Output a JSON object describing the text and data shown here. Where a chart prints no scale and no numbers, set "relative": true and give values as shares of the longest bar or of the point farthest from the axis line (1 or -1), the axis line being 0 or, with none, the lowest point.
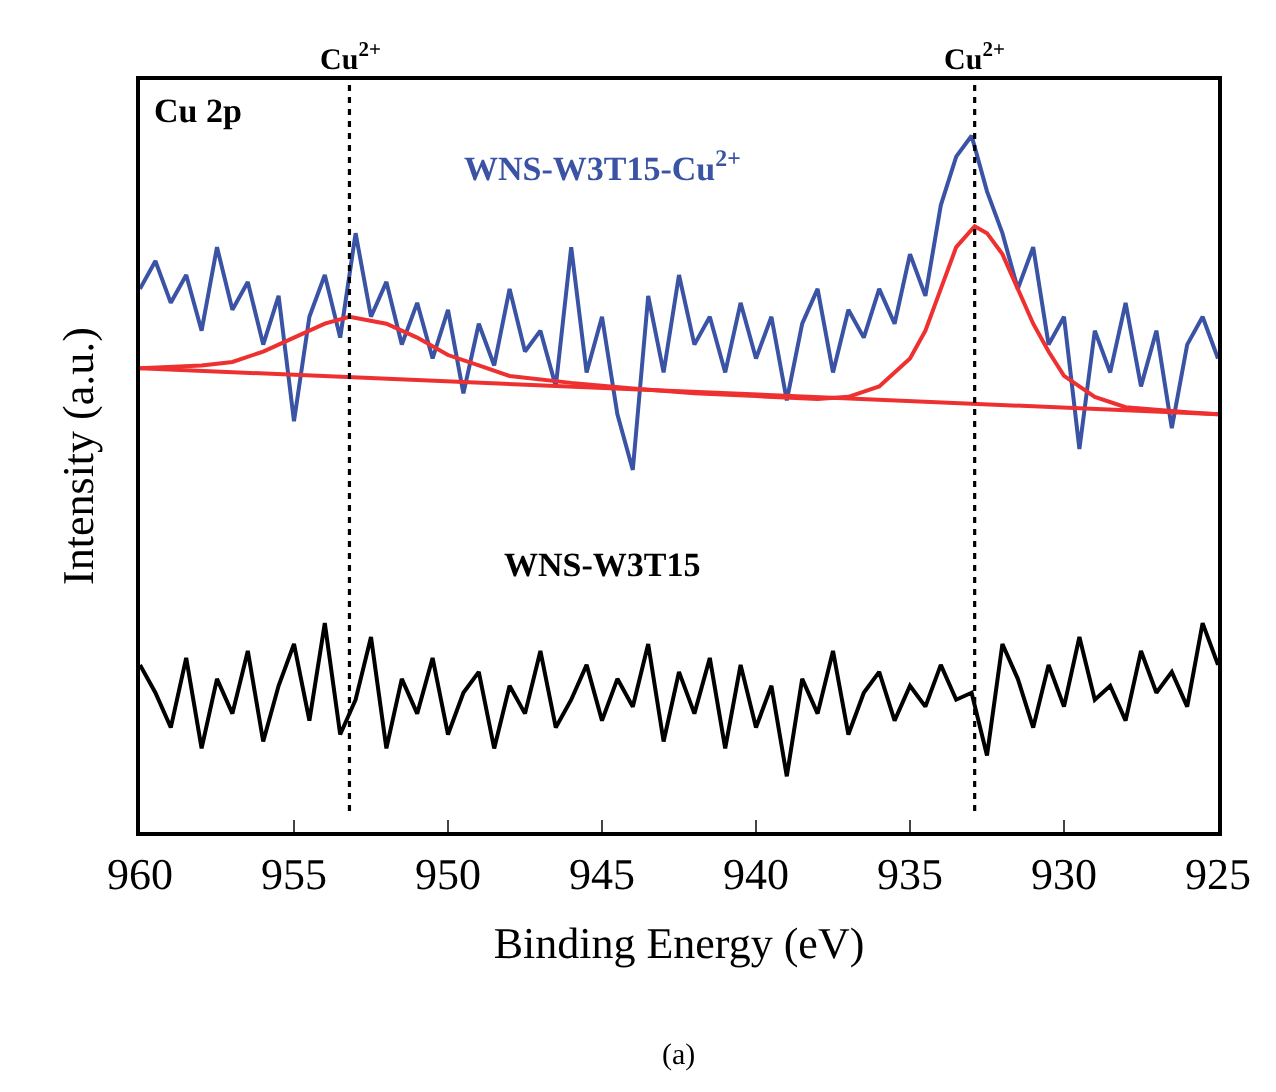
{
  "chart_data": {
    "type": "line",
    "relative": true,
    "xlabel": "Binding Energy (eV)",
    "ylabel": "Intensity (a.u.)",
    "annotations": [
      "Cu 2p",
      "(a)"
    ],
    "xlim": [
      960,
      925
    ],
    "xticks": [
      960,
      955,
      950,
      945,
      940,
      935,
      930,
      925
    ],
    "grid": false,
    "legend": false,
    "marker": "none",
    "line_style": "solid",
    "series": [
      {
        "name": "WNS-W3T15-Cu$^{2+}$",
        "color": "#3a53a4",
        "x": [
          960,
          959.5,
          959,
          958.5,
          958,
          957.5,
          957,
          956.5,
          956,
          955.5,
          955,
          954.5,
          954,
          953.5,
          953,
          952.5,
          952,
          951.5,
          951,
          950.5,
          950,
          949.5,
          949,
          948.5,
          948,
          947.5,
          947,
          946.5,
          946,
          945.5,
          945,
          944.5,
          944,
          943.5,
          943,
          942.5,
          942,
          941.5,
          941,
          940.5,
          940,
          939.5,
          939,
          938.5,
          938,
          937.5,
          937,
          936.5,
          936,
          935.5,
          935,
          934.5,
          934,
          933.5,
          933,
          932.5,
          932,
          931.5,
          931,
          930.5,
          930,
          929.5,
          929,
          928.5,
          928,
          927.5,
          927,
          926.5,
          926,
          925.5,
          925
        ],
        "values": [
          0.78,
          0.82,
          0.76,
          0.8,
          0.72,
          0.84,
          0.75,
          0.79,
          0.7,
          0.77,
          0.59,
          0.74,
          0.8,
          0.71,
          0.86,
          0.74,
          0.79,
          0.7,
          0.76,
          0.68,
          0.75,
          0.63,
          0.73,
          0.67,
          0.78,
          0.69,
          0.72,
          0.64,
          0.84,
          0.66,
          0.74,
          0.6,
          0.52,
          0.77,
          0.66,
          0.8,
          0.7,
          0.74,
          0.66,
          0.76,
          0.68,
          0.74,
          0.62,
          0.73,
          0.78,
          0.66,
          0.75,
          0.71,
          0.78,
          0.73,
          0.83,
          0.77,
          0.9,
          0.97,
          1.0,
          0.92,
          0.86,
          0.78,
          0.84,
          0.7,
          0.74,
          0.55,
          0.72,
          0.66,
          0.76,
          0.64,
          0.72,
          0.58,
          0.7,
          0.74,
          0.68
        ]
      },
      {
        "color": "#ee3030",
        "x": [
          960,
          958,
          957,
          956,
          955,
          954,
          953.2,
          952,
          951,
          950,
          949,
          948,
          946,
          944,
          942,
          940,
          938,
          937,
          936,
          935,
          934.5,
          934,
          933.5,
          932.9,
          932.5,
          932,
          931.5,
          931,
          930.5,
          930,
          929,
          928,
          926,
          925
        ],
        "values": [
          0.666,
          0.67,
          0.675,
          0.69,
          0.71,
          0.73,
          0.74,
          0.73,
          0.71,
          0.685,
          0.67,
          0.655,
          0.645,
          0.637,
          0.63,
          0.626,
          0.622,
          0.625,
          0.64,
          0.68,
          0.72,
          0.78,
          0.84,
          0.87,
          0.86,
          0.83,
          0.78,
          0.73,
          0.69,
          0.655,
          0.625,
          0.61,
          0.603,
          0.6
        ]
      },
      {
        "color": "#ee3030",
        "x": [
          960,
          925
        ],
        "values": [
          0.666,
          0.6
        ]
      },
      {
        "name": "WNS-W3T15",
        "color": "#000000",
        "x": [
          960,
          959.5,
          959,
          958.5,
          958,
          957.5,
          957,
          956.5,
          956,
          955.5,
          955,
          954.5,
          954,
          953.5,
          953,
          952.5,
          952,
          951.5,
          951,
          950.5,
          950,
          949.5,
          949,
          948.5,
          948,
          947.5,
          947,
          946.5,
          946,
          945.5,
          945,
          944.5,
          944,
          943.5,
          943,
          942.5,
          942,
          941.5,
          941,
          940.5,
          940,
          939.5,
          939,
          938.5,
          938,
          937.5,
          937,
          936.5,
          936,
          935.5,
          935,
          934.5,
          934,
          933.5,
          933,
          932.5,
          932,
          931.5,
          931,
          930.5,
          930,
          929.5,
          929,
          928.5,
          928,
          927.5,
          927,
          926.5,
          926,
          925.5,
          925
        ],
        "values": [
          0.24,
          0.2,
          0.15,
          0.25,
          0.12,
          0.22,
          0.17,
          0.26,
          0.13,
          0.21,
          0.27,
          0.16,
          0.3,
          0.14,
          0.19,
          0.28,
          0.12,
          0.22,
          0.17,
          0.25,
          0.14,
          0.2,
          0.23,
          0.12,
          0.21,
          0.17,
          0.26,
          0.15,
          0.19,
          0.24,
          0.16,
          0.22,
          0.18,
          0.27,
          0.13,
          0.23,
          0.17,
          0.25,
          0.12,
          0.24,
          0.15,
          0.21,
          0.08,
          0.22,
          0.17,
          0.26,
          0.14,
          0.2,
          0.23,
          0.16,
          0.21,
          0.18,
          0.24,
          0.19,
          0.2,
          0.11,
          0.27,
          0.22,
          0.15,
          0.24,
          0.18,
          0.28,
          0.19,
          0.21,
          0.16,
          0.26,
          0.2,
          0.23,
          0.18,
          0.3,
          0.24
        ]
      }
    ],
    "ref_lines": [
      {
        "axis": "x",
        "value": 953.2,
        "label": "Cu$^{2+}$",
        "color": "#000000",
        "line_style": "dotted"
      },
      {
        "axis": "x",
        "value": 932.9,
        "label": "Cu$^{2+}$",
        "color": "#000000",
        "line_style": "dotted"
      }
    ]
  }
}
